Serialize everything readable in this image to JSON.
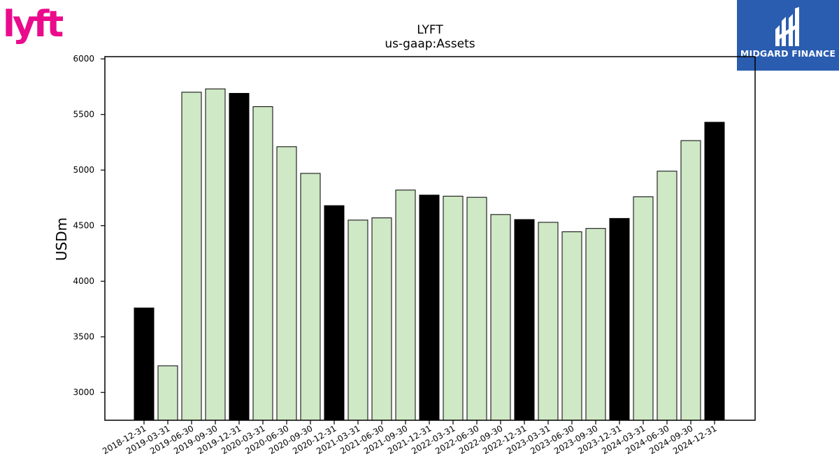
{
  "logos": {
    "brand": {
      "icon": "lyft-logo",
      "text": "lyft",
      "color": "#ea0b8c"
    },
    "partner": {
      "icon": "midgard-finance-logo",
      "text": "MIDGARD FINANCE",
      "background": "#2a5db0"
    }
  },
  "chart_data": {
    "type": "bar",
    "title": "LYFT",
    "subtitle": "us-gaap:Assets",
    "xlabel": "",
    "ylabel": "USDm",
    "ylim": [
      2750,
      6020
    ],
    "yticks": [
      3000,
      3500,
      4000,
      4500,
      5000,
      5500,
      6000
    ],
    "grid": false,
    "categories": [
      "2018-12-31",
      "2019-03-31",
      "2019-06-30",
      "2019-09-30",
      "2019-12-31",
      "2020-03-31",
      "2020-06-30",
      "2020-09-30",
      "2020-12-31",
      "2021-03-31",
      "2021-06-30",
      "2021-09-30",
      "2021-12-31",
      "2022-03-31",
      "2022-06-30",
      "2022-09-30",
      "2022-12-31",
      "2023-03-31",
      "2023-06-30",
      "2023-09-30",
      "2023-12-31",
      "2024-03-31",
      "2024-06-30",
      "2024-09-30",
      "2024-12-31"
    ],
    "values": [
      3760,
      3240,
      5700,
      5730,
      5690,
      5570,
      5210,
      4970,
      4680,
      4550,
      4570,
      4820,
      4775,
      4765,
      4755,
      4600,
      4555,
      4530,
      4445,
      4475,
      4565,
      4760,
      4990,
      5265,
      5430
    ],
    "colors": {
      "year_end": "#000000",
      "quarter": "#cfe8c6",
      "edge": "#000000"
    }
  }
}
